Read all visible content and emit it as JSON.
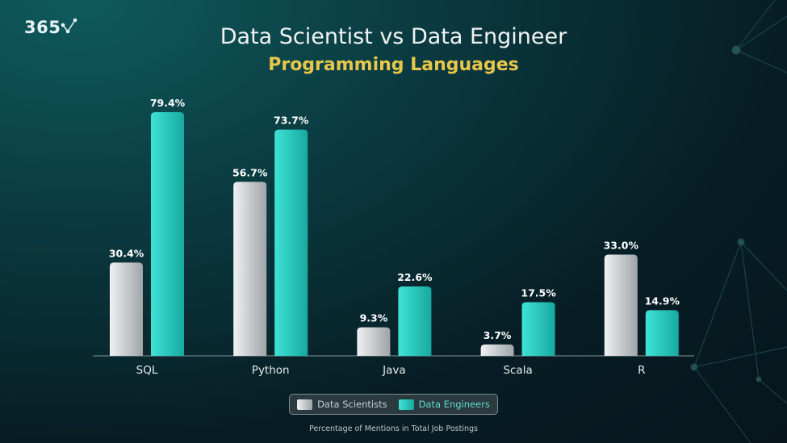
{
  "logo": "365",
  "chart_data": {
    "type": "bar",
    "title": "Data Scientist vs Data Engineer",
    "subtitle": "Programming Languages",
    "categories": [
      "SQL",
      "Python",
      "Java",
      "Scala",
      "R"
    ],
    "series": [
      {
        "name": "Data Scientists",
        "values": [
          30.4,
          56.7,
          9.3,
          3.7,
          33.0
        ],
        "labels": [
          "30.4%",
          "56.7%",
          "9.3%",
          "3.7%",
          "33.0%"
        ],
        "color": "#d4d7da"
      },
      {
        "name": "Data Engineers",
        "values": [
          79.4,
          73.7,
          22.6,
          17.5,
          14.9
        ],
        "labels": [
          "79.4%",
          "73.7%",
          "22.6%",
          "17.5%",
          "14.9%"
        ],
        "color": "#2fd3c6"
      }
    ],
    "xlabel": "Percentage of Mentions in Total Job Postings",
    "ylim": [
      0,
      80
    ],
    "grid": false,
    "legend": "bottom"
  }
}
